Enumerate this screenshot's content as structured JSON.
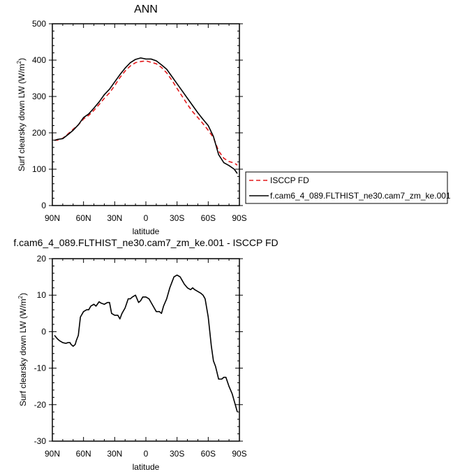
{
  "chart_data": [
    {
      "type": "line",
      "title": "ANN",
      "xlabel": "latitude",
      "ylabel": "Surf clearsky down LW (W/m",
      "ylabel_sup": "2",
      "ylabel_end": ")",
      "xlim": [
        90,
        -90
      ],
      "ylim": [
        0,
        500
      ],
      "x_ticks": [
        {
          "value": 90,
          "label": "90N"
        },
        {
          "value": 60,
          "label": "60N"
        },
        {
          "value": 30,
          "label": "30N"
        },
        {
          "value": 0,
          "label": "0"
        },
        {
          "value": -30,
          "label": "30S"
        },
        {
          "value": -60,
          "label": "60S"
        },
        {
          "value": -90,
          "label": "90S"
        }
      ],
      "y_ticks": [
        0,
        100,
        200,
        300,
        400,
        500
      ],
      "grid": false,
      "legend_position": "right",
      "series": [
        {
          "name": "ISCCP FD",
          "color": "#e31a1c",
          "dash": "dashed",
          "x": [
            88,
            85,
            80,
            75,
            70,
            65,
            60,
            55,
            50,
            45,
            40,
            35,
            30,
            25,
            20,
            15,
            10,
            5,
            0,
            -5,
            -10,
            -15,
            -20,
            -25,
            -30,
            -35,
            -40,
            -45,
            -50,
            -55,
            -60,
            -65,
            -70,
            -75,
            -80,
            -85,
            -88
          ],
          "y": [
            180,
            180,
            185,
            197,
            210,
            222,
            238,
            248,
            262,
            278,
            295,
            310,
            330,
            352,
            370,
            384,
            393,
            396,
            398,
            394,
            390,
            380,
            365,
            345,
            322,
            300,
            278,
            258,
            242,
            225,
            207,
            187,
            150,
            130,
            121,
            117,
            111
          ]
        },
        {
          "name": "f.cam6_4_089.FLTHIST_ne30.cam7_zm_ke.001",
          "color": "#000000",
          "dash": "solid",
          "x": [
            88,
            85,
            80,
            75,
            70,
            65,
            60,
            55,
            50,
            45,
            40,
            35,
            30,
            25,
            20,
            15,
            10,
            5,
            0,
            -5,
            -10,
            -15,
            -20,
            -25,
            -30,
            -35,
            -40,
            -45,
            -50,
            -55,
            -60,
            -65,
            -70,
            -75,
            -80,
            -85,
            -88
          ],
          "y": [
            179,
            182,
            184,
            195,
            207,
            222,
            242,
            252,
            268,
            285,
            305,
            320,
            340,
            360,
            378,
            393,
            402,
            406,
            403,
            403,
            398,
            387,
            375,
            355,
            335,
            315,
            295,
            275,
            255,
            237,
            220,
            190,
            140,
            118,
            110,
            100,
            88
          ]
        }
      ]
    },
    {
      "type": "line",
      "title": "f.cam6_4_089.FLTHIST_ne30.cam7_zm_ke.001 - ISCCP FD",
      "xlabel": "latitude",
      "ylabel": "Surf clearsky down LW (W/m",
      "ylabel_sup": "2",
      "ylabel_end": ")",
      "xlim": [
        90,
        -90
      ],
      "ylim": [
        -30,
        20
      ],
      "x_ticks": [
        {
          "value": 90,
          "label": "90N"
        },
        {
          "value": 60,
          "label": "60N"
        },
        {
          "value": 30,
          "label": "30N"
        },
        {
          "value": 0,
          "label": "0"
        },
        {
          "value": -30,
          "label": "30S"
        },
        {
          "value": -60,
          "label": "60S"
        },
        {
          "value": -90,
          "label": "90S"
        }
      ],
      "y_ticks": [
        -30,
        -20,
        -10,
        0,
        10,
        20
      ],
      "grid": false,
      "series": [
        {
          "color": "#000000",
          "dash": "solid",
          "x": [
            88,
            85,
            83,
            80,
            77,
            75,
            73,
            72,
            70,
            68,
            67,
            65,
            63,
            60,
            57,
            55,
            53,
            50,
            48,
            45,
            43,
            40,
            37,
            35,
            33,
            30,
            27,
            25,
            23,
            20,
            17,
            15,
            13,
            10,
            7,
            5,
            3,
            0,
            -3,
            -5,
            -7,
            -10,
            -13,
            -15,
            -17,
            -20,
            -23,
            -25,
            -27,
            -30,
            -33,
            -35,
            -37,
            -40,
            -43,
            -45,
            -47,
            -50,
            -53,
            -55,
            -57,
            -60,
            -63,
            -65,
            -67,
            -70,
            -73,
            -75,
            -77,
            -80,
            -83,
            -85,
            -88
          ],
          "y": [
            -1,
            -2,
            -2.5,
            -3,
            -3.2,
            -3,
            -3,
            -3.5,
            -4,
            -3.5,
            -2.5,
            -1,
            4,
            5.5,
            6,
            6,
            7,
            7.5,
            7,
            8.2,
            7.8,
            7.5,
            8,
            8,
            5,
            4.5,
            4.5,
            3.5,
            5,
            6.5,
            9,
            9,
            9.5,
            10,
            8,
            8.5,
            9.5,
            9.5,
            9,
            8,
            7,
            5.5,
            5.5,
            5,
            7,
            9,
            12,
            13.5,
            15,
            15.5,
            15,
            14,
            13,
            12,
            11.5,
            12,
            11.5,
            11,
            10.5,
            10,
            9,
            4,
            -4,
            -8,
            -9.5,
            -13,
            -13,
            -12.5,
            -12.5,
            -15,
            -17,
            -19,
            -22
          ]
        }
      ]
    }
  ]
}
